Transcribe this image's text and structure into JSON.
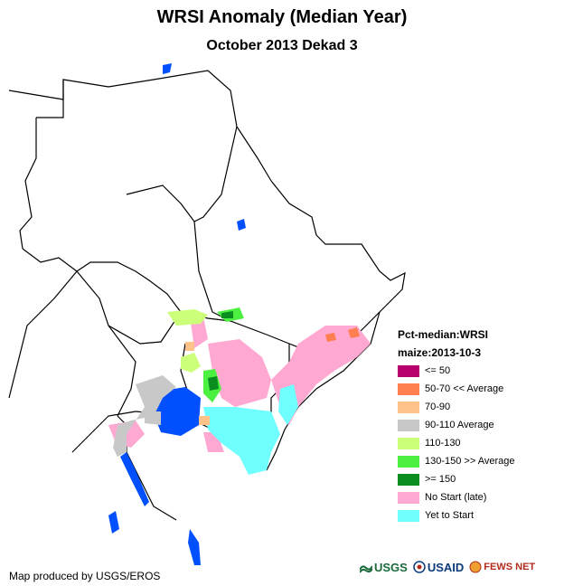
{
  "title": "WRSI Anomaly (Median Year)",
  "subtitle": "October 2013 Dekad 3",
  "legend": {
    "heading1": "Pct-median:WRSI",
    "heading2": "maize:2013-10-3",
    "items": [
      {
        "label": "<= 50",
        "color": "#b5006e"
      },
      {
        "label": "50-70 << Average",
        "color": "#ff7f50"
      },
      {
        "label": "70-90",
        "color": "#ffc38a"
      },
      {
        "label": "90-110 Average",
        "color": "#c8c8c8"
      },
      {
        "label": "110-130",
        "color": "#ccff7a"
      },
      {
        "label": "130-150 >> Average",
        "color": "#4cf040"
      },
      {
        "label": ">= 150",
        "color": "#0a8c1e"
      },
      {
        "label": "No Start (late)",
        "color": "#ffa8d2"
      },
      {
        "label": "Yet to Start",
        "color": "#70ffff"
      }
    ]
  },
  "credit": "Map produced by USGS/EROS",
  "logos": {
    "usgs": "USGS",
    "usaid": "USAID",
    "fews": "FEWS NET"
  },
  "colors": {
    "water": "#0050ff",
    "border": "#000000"
  }
}
